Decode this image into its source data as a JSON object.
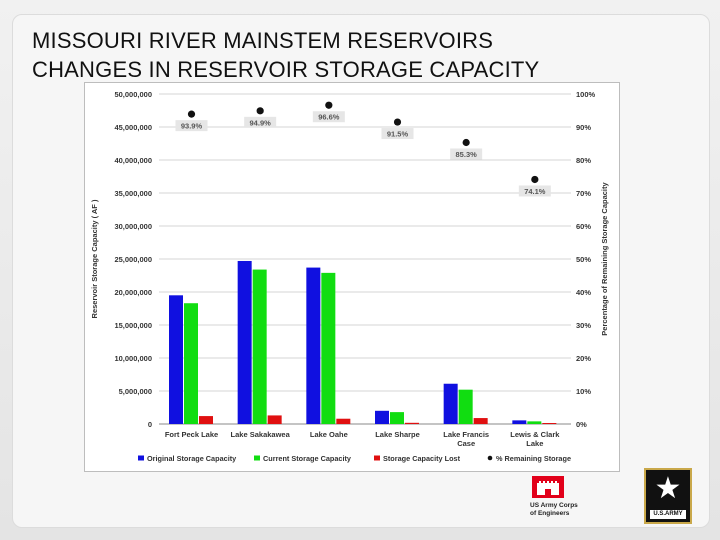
{
  "slide": {
    "title_line1": "MISSOURI RIVER MAINSTEM RESERVOIRS",
    "title_line2": "CHANGES IN RESERVOIR STORAGE CAPACITY"
  },
  "logos": {
    "usace_line1": "US Army Corps",
    "usace_line2": "of Engineers",
    "usace_icon": "castle-icon",
    "army_text": "U.S.ARMY",
    "army_icon": "star-icon"
  },
  "chart_data": {
    "type": "bar",
    "title": "",
    "categories": [
      [
        "Fort Peck Lake"
      ],
      [
        "Lake Sakakawea"
      ],
      [
        "Lake Oahe"
      ],
      [
        "Lake Sharpe"
      ],
      [
        "Lake Francis",
        "Case"
      ],
      [
        "Lewis & Clark",
        "Lake"
      ]
    ],
    "ylabel": "Reservoir Storage Capacity ( AF )",
    "y2label": "Percentage of Remaining Storage Capacity",
    "ylim": [
      0,
      50000000
    ],
    "y2lim": [
      0,
      100
    ],
    "yticks": [
      "0",
      "5,000,000",
      "10,000,000",
      "15,000,000",
      "20,000,000",
      "25,000,000",
      "30,000,000",
      "35,000,000",
      "40,000,000",
      "45,000,000",
      "50,000,000"
    ],
    "y2ticks": [
      "0%",
      "10%",
      "20%",
      "30%",
      "40%",
      "50%",
      "60%",
      "70%",
      "80%",
      "90%",
      "100%"
    ],
    "grid": true,
    "legend_position": "bottom",
    "series": [
      {
        "name": "Original Storage Capacity",
        "color": "#1010e0",
        "values": [
          19500000,
          24700000,
          23700000,
          2000000,
          6100000,
          550000
        ]
      },
      {
        "name": "Current Storage Capacity",
        "color": "#11dd11",
        "values": [
          18300000,
          23400000,
          22900000,
          1800000,
          5200000,
          400000
        ]
      },
      {
        "name": "Storage Capacity Lost",
        "color": "#e01010",
        "values": [
          1200000,
          1300000,
          800000,
          180000,
          900000,
          150000
        ]
      },
      {
        "name": "% Remaining Storage",
        "color": "#111111",
        "axis": "right",
        "values": [
          93.9,
          94.9,
          96.6,
          91.5,
          85.3,
          74.1
        ],
        "labels": [
          "93.9%",
          "94.9%",
          "96.6%",
          "91.5%",
          "85.3%",
          "74.1%"
        ]
      }
    ]
  }
}
